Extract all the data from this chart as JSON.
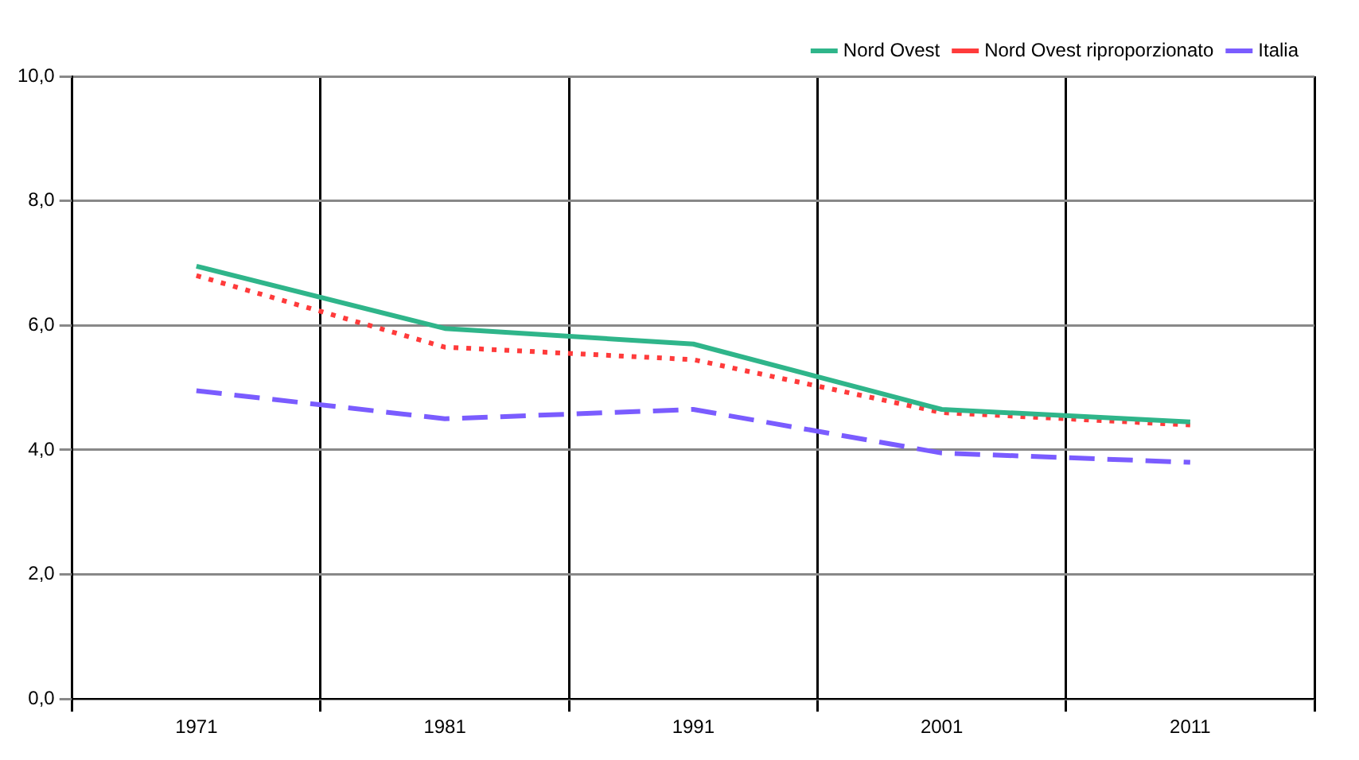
{
  "chart_data": {
    "type": "line",
    "categories": [
      "1971",
      "1981",
      "1991",
      "2001",
      "2011"
    ],
    "series": [
      {
        "name": "Nord Ovest",
        "color": "#2fb58a",
        "line_style": "solid",
        "values": [
          6.95,
          5.95,
          5.7,
          4.65,
          4.45
        ]
      },
      {
        "name": "Nord Ovest riproporzionato",
        "color": "#ff3b3b",
        "line_style": "dotted",
        "values": [
          6.8,
          5.65,
          5.45,
          4.6,
          4.4
        ]
      },
      {
        "name": "Italia",
        "color": "#7a5cff",
        "line_style": "dashed",
        "values": [
          4.95,
          4.5,
          4.65,
          3.95,
          3.8
        ]
      }
    ],
    "ylim": [
      0,
      10
    ],
    "yticks": [
      {
        "value": 0,
        "label": "0,0"
      },
      {
        "value": 2,
        "label": "2,0"
      },
      {
        "value": 4,
        "label": "4,0"
      },
      {
        "value": 6,
        "label": "6,0"
      },
      {
        "value": 8,
        "label": "8,0"
      },
      {
        "value": 10,
        "label": "10,0"
      }
    ],
    "grid": true,
    "legend": "top right",
    "marker": "none"
  }
}
